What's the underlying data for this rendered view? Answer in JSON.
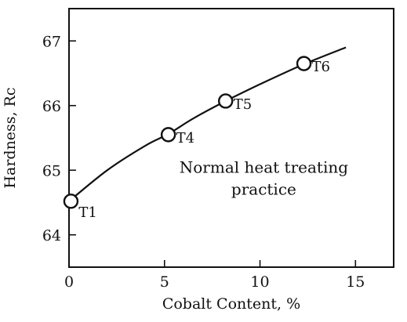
{
  "chart_data": {
    "type": "line",
    "title": "",
    "xlabel": "Cobalt Content, %",
    "ylabel": "Hardness, Rc",
    "xlim": [
      0,
      17
    ],
    "ylim": [
      63.5,
      67.5
    ],
    "xticks": [
      0,
      5,
      10,
      15
    ],
    "yticks": [
      64,
      65,
      66,
      67
    ],
    "grid": false,
    "annotation": {
      "lines": [
        "Normal heat treating",
        "practice"
      ],
      "x": 10.2,
      "y": 64.6
    },
    "curve": {
      "x": [
        0,
        2,
        4,
        5.2,
        6.5,
        8.2,
        10,
        12.3,
        14.5
      ],
      "y": [
        64.52,
        65.0,
        65.38,
        65.56,
        65.8,
        66.07,
        66.33,
        66.64,
        66.9
      ]
    },
    "points": [
      {
        "label": "T1",
        "x": 0.1,
        "y": 64.52
      },
      {
        "label": "T4",
        "x": 5.2,
        "y": 65.55
      },
      {
        "label": "T5",
        "x": 8.2,
        "y": 66.07
      },
      {
        "label": "T6",
        "x": 12.3,
        "y": 66.65
      }
    ]
  }
}
